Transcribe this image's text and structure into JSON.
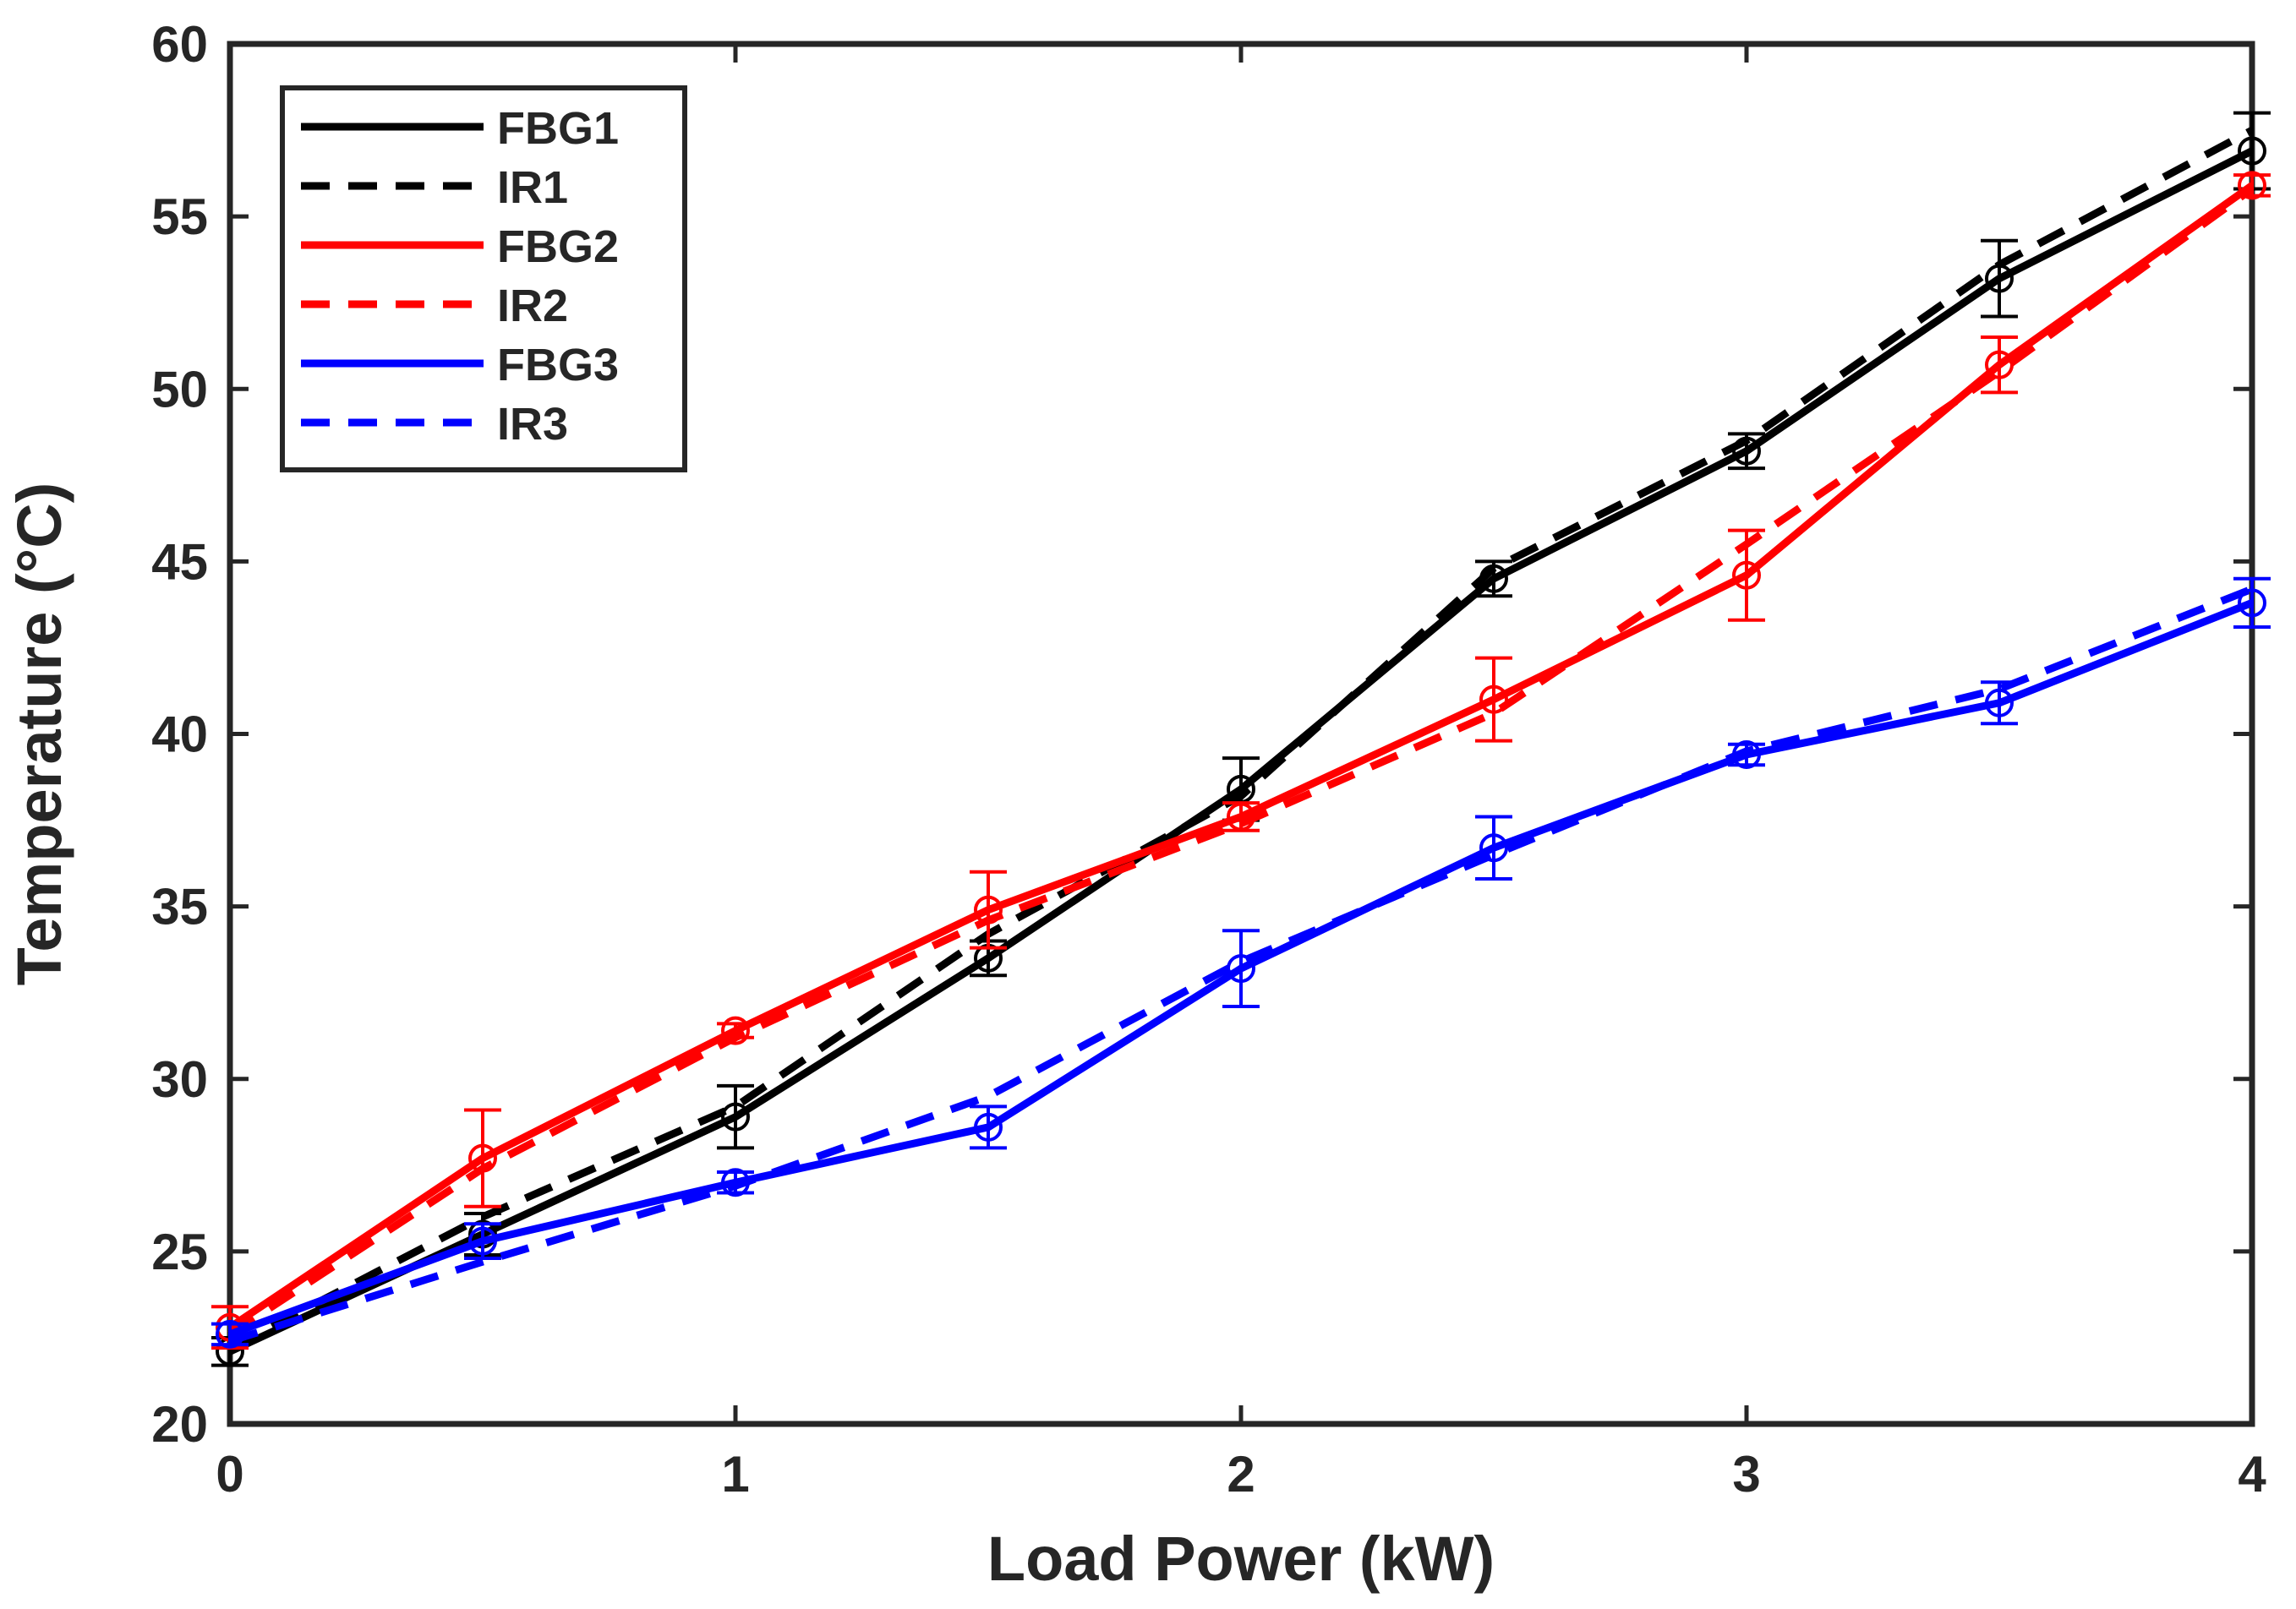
{
  "chart_data": {
    "type": "line",
    "title": "",
    "xlabel": "Load Power (kW)",
    "ylabel": "Temperature (°C)",
    "xlim": [
      0,
      4
    ],
    "ylim": [
      20,
      60
    ],
    "x_ticks": [
      0,
      1,
      2,
      3,
      4
    ],
    "x_tick_labels": [
      "0",
      "1",
      "2",
      "3",
      "4"
    ],
    "y_ticks": [
      20,
      25,
      30,
      35,
      40,
      45,
      50,
      55,
      60
    ],
    "y_tick_labels": [
      "20",
      "25",
      "30",
      "35",
      "40",
      "45",
      "50",
      "55",
      "60"
    ],
    "grid": false,
    "legend_position": "top-left",
    "x": [
      0,
      0.5,
      1,
      1.5,
      2,
      2.5,
      3,
      3.5,
      4
    ],
    "series": [
      {
        "name": "FBG1",
        "color": "#000000",
        "style": "solid",
        "markers": true,
        "values": [
          22.1,
          25.5,
          28.9,
          33.5,
          38.4,
          44.5,
          48.2,
          53.2,
          56.9
        ],
        "error": [
          0.4,
          0.6,
          0.9,
          0.5,
          0.9,
          0.5,
          0.5,
          1.1,
          1.1
        ]
      },
      {
        "name": "IR1",
        "color": "#000000",
        "style": "dashed",
        "markers": false,
        "values": [
          22.2,
          26.0,
          29.2,
          34.2,
          38.2,
          44.8,
          48.5,
          53.6,
          57.5
        ]
      },
      {
        "name": "FBG2",
        "color": "#ff0000",
        "style": "solid",
        "markers": true,
        "values": [
          22.8,
          27.7,
          31.4,
          34.9,
          37.6,
          41.0,
          44.6,
          50.7,
          55.9
        ],
        "error": [
          0.6,
          1.4,
          0.2,
          1.1,
          0.4,
          1.2,
          1.3,
          0.8,
          0.3
        ]
      },
      {
        "name": "IR2",
        "color": "#ff0000",
        "style": "dashed",
        "markers": false,
        "values": [
          22.6,
          27.4,
          31.2,
          34.6,
          37.4,
          40.6,
          45.5,
          50.5,
          55.8
        ]
      },
      {
        "name": "FBG3",
        "color": "#0000ff",
        "style": "solid",
        "markers": true,
        "values": [
          22.6,
          25.3,
          27.0,
          28.6,
          33.2,
          36.7,
          39.4,
          40.9,
          43.8
        ],
        "error": [
          0.3,
          0.5,
          0.3,
          0.6,
          1.1,
          0.9,
          0.3,
          0.6,
          0.7
        ]
      },
      {
        "name": "IR3",
        "color": "#0000ff",
        "style": "dashed",
        "markers": false,
        "values": [
          22.4,
          24.7,
          26.9,
          29.5,
          33.4,
          36.5,
          39.5,
          41.3,
          44.2
        ]
      }
    ]
  }
}
